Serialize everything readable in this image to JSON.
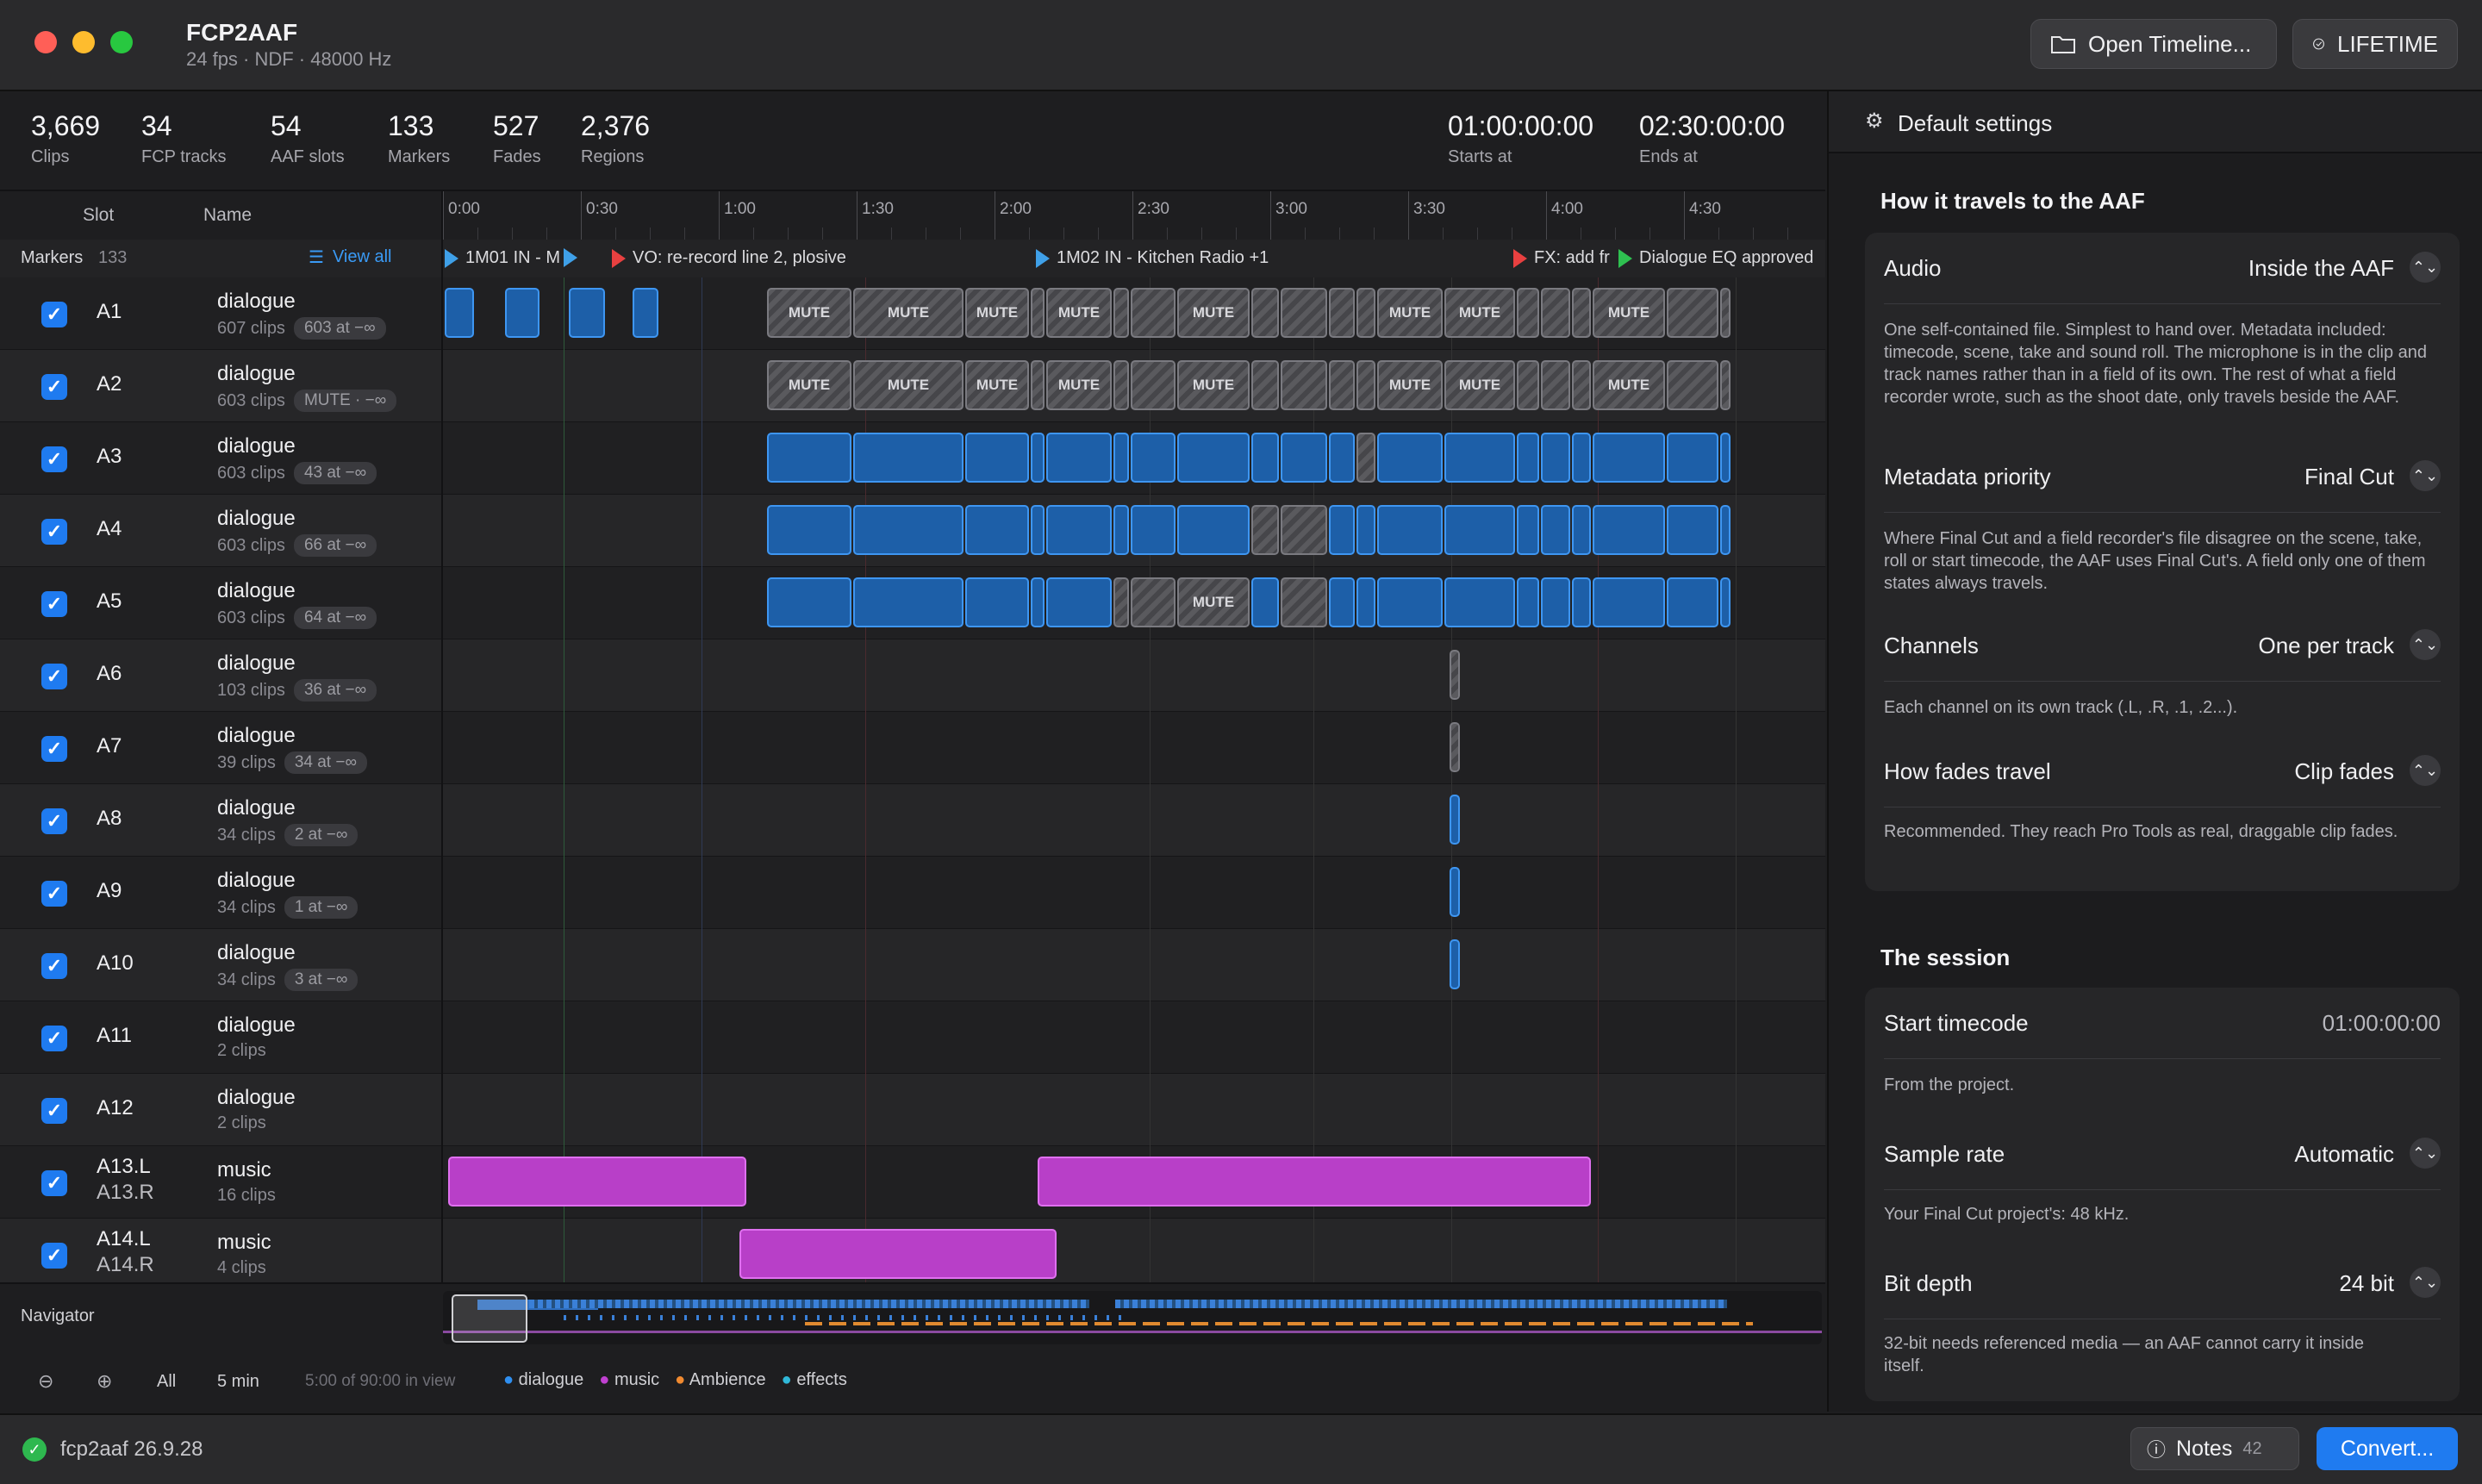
{
  "app": {
    "title": "FCP2AAF",
    "subtitle": "24 fps · NDF · 48000 Hz"
  },
  "toolbar": {
    "open_label": "Open Timeline...",
    "license_label": "LIFETIME"
  },
  "stats": [
    {
      "value": "3,669",
      "label": "Clips"
    },
    {
      "value": "34",
      "label": "FCP tracks"
    },
    {
      "value": "54",
      "label": "AAF slots"
    },
    {
      "value": "133",
      "label": "Markers"
    },
    {
      "value": "527",
      "label": "Fades"
    },
    {
      "value": "2,376",
      "label": "Regions"
    }
  ],
  "timecodes": {
    "start": "01:00:00:00",
    "start_label": "Starts at",
    "end": "02:30:00:00",
    "end_label": "Ends at"
  },
  "columns": {
    "slot": "Slot",
    "name": "Name"
  },
  "ruler": [
    "0:00",
    "0:30",
    "1:00",
    "1:30",
    "2:00",
    "2:30",
    "3:00",
    "3:30",
    "4:00",
    "4:30"
  ],
  "markers_row": {
    "label": "Markers",
    "count": "133",
    "view_all": "View all"
  },
  "markers": [
    {
      "text": "1M01 IN - M",
      "color": "#3fa0e8"
    },
    {
      "text": "",
      "color": "#3fa0e8"
    },
    {
      "text": "VO: re-record line 2, plosive",
      "color": "#e84040"
    },
    {
      "text": "1M02 IN - Kitchen Radio  +1",
      "color": "#3fa0e8"
    },
    {
      "text": "FX: add fr",
      "color": "#e84040"
    },
    {
      "text": "Dialogue EQ approved",
      "color": "#2ec050"
    }
  ],
  "tracks": [
    {
      "slot": "A1",
      "slot2": "",
      "name": "dialogue",
      "clips": "607 clips",
      "chip": "603 at −∞"
    },
    {
      "slot": "A2",
      "slot2": "",
      "name": "dialogue",
      "clips": "603 clips",
      "chip": "MUTE · −∞"
    },
    {
      "slot": "A3",
      "slot2": "",
      "name": "dialogue",
      "clips": "603 clips",
      "chip": "43 at −∞"
    },
    {
      "slot": "A4",
      "slot2": "",
      "name": "dialogue",
      "clips": "603 clips",
      "chip": "66 at −∞"
    },
    {
      "slot": "A5",
      "slot2": "",
      "name": "dialogue",
      "clips": "603 clips",
      "chip": "64 at −∞"
    },
    {
      "slot": "A6",
      "slot2": "",
      "name": "dialogue",
      "clips": "103 clips",
      "chip": "36 at −∞"
    },
    {
      "slot": "A7",
      "slot2": "",
      "name": "dialogue",
      "clips": "39 clips",
      "chip": "34 at −∞"
    },
    {
      "slot": "A8",
      "slot2": "",
      "name": "dialogue",
      "clips": "34 clips",
      "chip": "2 at −∞"
    },
    {
      "slot": "A9",
      "slot2": "",
      "name": "dialogue",
      "clips": "34 clips",
      "chip": "1 at −∞"
    },
    {
      "slot": "A10",
      "slot2": "",
      "name": "dialogue",
      "clips": "34 clips",
      "chip": "3 at −∞"
    },
    {
      "slot": "A11",
      "slot2": "",
      "name": "dialogue",
      "clips": "2 clips",
      "chip": ""
    },
    {
      "slot": "A12",
      "slot2": "",
      "name": "dialogue",
      "clips": "2 clips",
      "chip": ""
    },
    {
      "slot": "A13.L",
      "slot2": "A13.R",
      "name": "music",
      "clips": "16 clips",
      "chip": ""
    },
    {
      "slot": "A14.L",
      "slot2": "A14.R",
      "name": "music",
      "clips": "4 clips",
      "chip": ""
    }
  ],
  "mute_label": "MUTE",
  "navigator": {
    "label": "Navigator",
    "all": "All",
    "span": "5 min",
    "in_view": "5:00 of 90:00 in view",
    "legend": [
      {
        "name": "dialogue",
        "color": "#2f8ff0"
      },
      {
        "name": "music",
        "color": "#c040d0"
      },
      {
        "name": "Ambience",
        "color": "#f08a30"
      },
      {
        "name": "effects",
        "color": "#30b8d8"
      }
    ]
  },
  "panel": {
    "header": "Default settings",
    "section1": "How it travels to the AAF",
    "settings1": [
      {
        "label": "Audio",
        "value": "Inside the AAF",
        "desc": "One self-contained file. Simplest to hand over. Metadata included: timecode, scene, take and sound roll. The microphone is in the clip and track names rather than in a field of its own. The rest of what a field recorder wrote, such as the shoot date, only travels beside the AAF."
      },
      {
        "label": "Metadata priority",
        "value": "Final Cut",
        "desc": "Where Final Cut and a field recorder's file disagree on the scene, take, roll or start timecode, the AAF uses Final Cut's. A field only one of them states always travels."
      },
      {
        "label": "Channels",
        "value": "One per track",
        "desc": "Each channel on its own track (.L, .R, .1, .2...)."
      },
      {
        "label": "How fades travel",
        "value": "Clip fades",
        "desc": "Recommended. They reach Pro Tools as real, draggable clip fades."
      }
    ],
    "section2": "The session",
    "settings2": [
      {
        "label": "Start timecode",
        "value": "01:00:00:00",
        "desc": "From the project."
      },
      {
        "label": "Sample rate",
        "value": "Automatic",
        "desc": "Your Final Cut project's: 48 kHz."
      },
      {
        "label": "Bit depth",
        "value": "24 bit",
        "desc": "32-bit needs referenced media — an AAF cannot carry it inside itself."
      }
    ]
  },
  "status": {
    "version": "fcp2aaf 26.9.28",
    "notes_label": "Notes",
    "notes_count": "42",
    "convert_label": "Convert..."
  }
}
